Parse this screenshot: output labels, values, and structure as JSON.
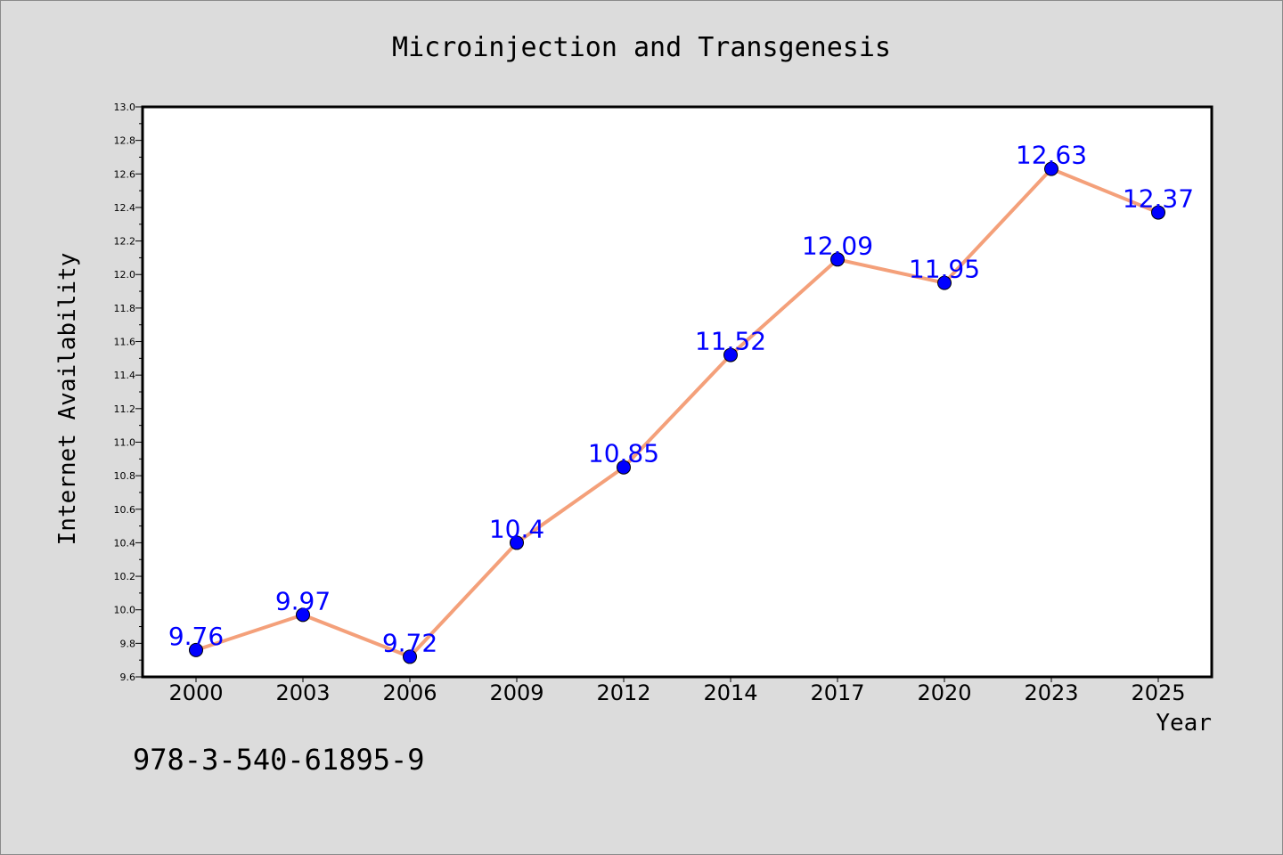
{
  "chart_data": {
    "type": "line",
    "title": "Microinjection and Transgenesis",
    "xlabel": "Year",
    "ylabel": "Internet Availability",
    "categories": [
      "2000",
      "2003",
      "2006",
      "2009",
      "2012",
      "2014",
      "2017",
      "2020",
      "2023",
      "2025"
    ],
    "series": [
      {
        "values": [
          9.76,
          9.97,
          9.72,
          10.4,
          10.85,
          11.52,
          12.09,
          11.95,
          12.63,
          12.37
        ]
      }
    ],
    "data_labels": [
      "9.76",
      "9.97",
      "9.72",
      "10.4",
      "10.85",
      "11.52",
      "12.09",
      "11.95",
      "12.63",
      "12.37"
    ],
    "ylim": [
      9.6,
      13.0
    ],
    "yticks": [
      "9.6",
      "9.8",
      "10.0",
      "10.2",
      "10.4",
      "10.6",
      "10.8",
      "11.0",
      "11.2",
      "11.4",
      "11.6",
      "11.8",
      "12.0",
      "12.2",
      "12.4",
      "12.6",
      "12.8",
      "13.0"
    ],
    "grid": false,
    "legend": "none",
    "colors": {
      "line": "#f4a07a",
      "marker": "#0000ff",
      "data_label": "#0000ff",
      "plot_background": "#ffffff",
      "figure_background": "#dcdcdc"
    }
  },
  "footer_text": "978-3-540-61895-9"
}
